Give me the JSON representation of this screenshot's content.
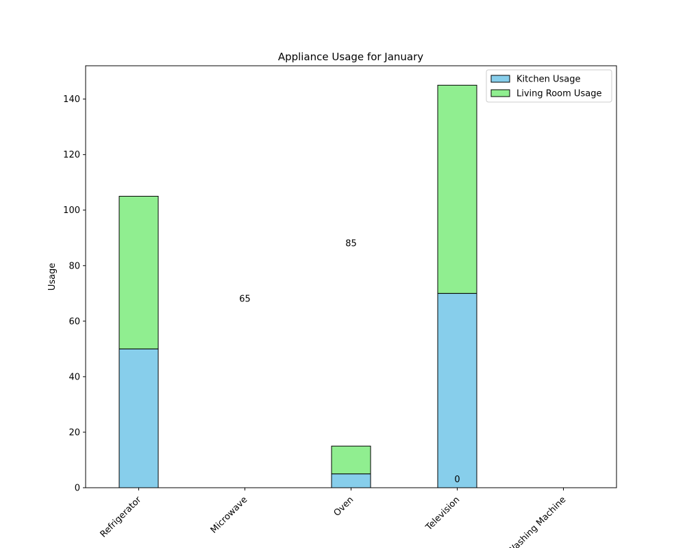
{
  "chart_data": {
    "type": "bar",
    "stacked": true,
    "title": "Appliance Usage for January",
    "xlabel": "",
    "ylabel": "Usage",
    "categories": [
      "Refrigerator",
      "Microwave",
      "Oven",
      "Television",
      "Washing Machine"
    ],
    "series": [
      {
        "name": "Kitchen Usage",
        "values": [
          50,
          0,
          5,
          70,
          0
        ],
        "color": "#87CEEB"
      },
      {
        "name": "Living Room Usage",
        "values": [
          55,
          0,
          10,
          75,
          0
        ],
        "color": "#90EE90"
      }
    ],
    "annotations": [
      {
        "text": "65",
        "x": "Microwave",
        "y": 67
      },
      {
        "text": "85",
        "x": "Oven",
        "y": 87
      },
      {
        "text": "0",
        "x": "Television",
        "y": 2
      }
    ],
    "ylim": [
      0,
      152
    ],
    "yticks": [
      0,
      20,
      40,
      60,
      80,
      100,
      120,
      140
    ],
    "grid": false,
    "legend": "top-right",
    "edge_color": "#000000"
  }
}
